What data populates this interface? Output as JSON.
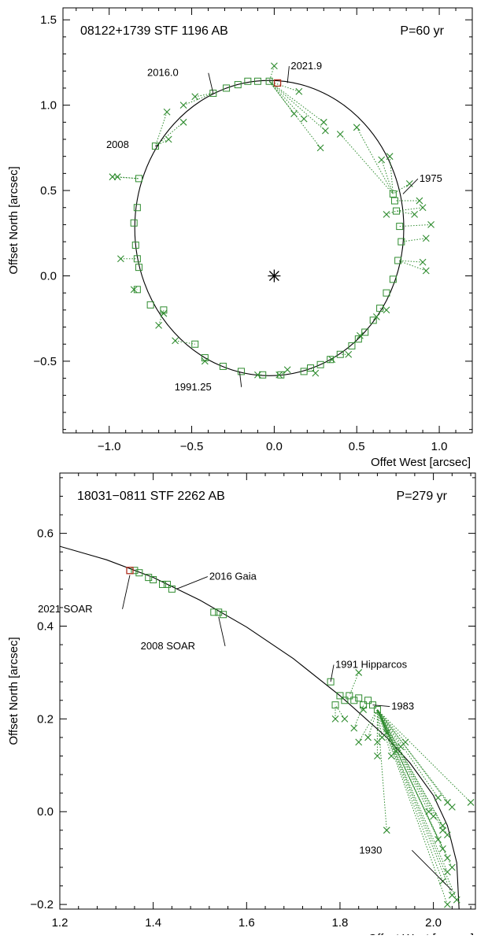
{
  "colors": {
    "measure": "#2e8b2e",
    "model": "#2e8b2e",
    "latest": "#b03020",
    "orbit": "#000000",
    "axis": "#000000"
  },
  "chart_data": [
    {
      "type": "scatter",
      "title": "08122+1739  STF 1196 AB",
      "period": "P=60 yr",
      "xlabel": "Offet West [arcsec]",
      "ylabel": "Offset North [arcsec]",
      "xlim": [
        -1.28,
        1.2
      ],
      "ylim": [
        -0.92,
        1.57
      ],
      "xticks": [
        -1.0,
        -0.5,
        0.0,
        0.5,
        1.0
      ],
      "xtick_labels": [
        "−1.0",
        "−0.5",
        "0.0",
        "0.5",
        "1.0"
      ],
      "yticks": [
        -0.5,
        0.0,
        0.5,
        1.0,
        1.5
      ],
      "ytick_labels": [
        "−0.5",
        "0.0",
        "0.5",
        "1.0",
        "1.5"
      ],
      "grid": false,
      "primary_star": [
        0,
        0
      ],
      "orbit": {
        "cx": -0.03,
        "cy": 0.28,
        "rx": 0.815,
        "ry": 0.865
      },
      "annotations": [
        {
          "text": "2016.0",
          "x": -0.37,
          "y": 1.07,
          "tx": -0.58,
          "ty": 1.17
        },
        {
          "text": "2021.9",
          "x": 0.08,
          "y": 1.13,
          "tx": 0.1,
          "ty": 1.21
        },
        {
          "text": "2008",
          "x": -0.72,
          "y": 0.76,
          "tx": -0.88,
          "ty": 0.75
        },
        {
          "text": "1975",
          "x": 0.78,
          "y": 0.48,
          "tx": 0.88,
          "ty": 0.55
        },
        {
          "text": "1991.25",
          "x": -0.21,
          "y": -0.56,
          "tx": -0.38,
          "ty": -0.67
        }
      ],
      "highlight": [
        0.02,
        1.13
      ],
      "series": [
        {
          "name": "",
          "fits": [
            [
              -0.37,
              1.07
            ],
            [
              -0.29,
              1.1
            ],
            [
              -0.22,
              1.12
            ],
            [
              -0.16,
              1.14
            ],
            [
              -0.1,
              1.14
            ],
            [
              -0.03,
              1.14
            ],
            [
              -0.72,
              0.76
            ],
            [
              -0.82,
              0.57
            ],
            [
              -0.83,
              0.4
            ],
            [
              -0.85,
              0.31
            ],
            [
              -0.84,
              0.18
            ],
            [
              -0.83,
              0.1
            ],
            [
              -0.82,
              0.05
            ],
            [
              -0.83,
              -0.08
            ],
            [
              -0.75,
              -0.17
            ],
            [
              -0.67,
              -0.2
            ],
            [
              -0.48,
              -0.4
            ],
            [
              -0.42,
              -0.48
            ],
            [
              -0.31,
              -0.53
            ],
            [
              -0.2,
              -0.56
            ],
            [
              -0.07,
              -0.58
            ],
            [
              0.04,
              -0.58
            ],
            [
              0.18,
              -0.56
            ],
            [
              0.22,
              -0.54
            ],
            [
              0.28,
              -0.52
            ],
            [
              0.34,
              -0.49
            ],
            [
              0.4,
              -0.46
            ],
            [
              0.47,
              -0.41
            ],
            [
              0.51,
              -0.37
            ],
            [
              0.55,
              -0.33
            ],
            [
              0.6,
              -0.26
            ],
            [
              0.64,
              -0.19
            ],
            [
              0.68,
              -0.1
            ],
            [
              0.72,
              -0.02
            ],
            [
              0.75,
              0.09
            ],
            [
              0.77,
              0.2
            ],
            [
              0.76,
              0.29
            ],
            [
              0.74,
              0.38
            ],
            [
              0.73,
              0.44
            ],
            [
              0.72,
              0.48
            ]
          ],
          "obs": [
            [
              0.0,
              1.23
            ],
            [
              0.15,
              1.08
            ],
            [
              0.12,
              0.95
            ],
            [
              0.18,
              0.92
            ],
            [
              0.3,
              0.9
            ],
            [
              0.31,
              0.85
            ],
            [
              0.28,
              0.75
            ],
            [
              0.4,
              0.83
            ],
            [
              0.5,
              0.87
            ],
            [
              0.65,
              0.68
            ],
            [
              0.7,
              0.7
            ],
            [
              0.82,
              0.54
            ],
            [
              0.88,
              0.44
            ],
            [
              0.9,
              0.4
            ],
            [
              0.85,
              0.36
            ],
            [
              0.95,
              0.3
            ],
            [
              0.92,
              0.22
            ],
            [
              0.9,
              0.08
            ],
            [
              0.92,
              0.03
            ],
            [
              0.68,
              0.36
            ],
            [
              -0.55,
              1.0
            ],
            [
              -0.48,
              1.05
            ],
            [
              -0.65,
              0.96
            ],
            [
              -0.64,
              0.8
            ],
            [
              -0.55,
              0.9
            ],
            [
              -0.98,
              0.58
            ],
            [
              -0.95,
              0.58
            ],
            [
              -0.93,
              0.1
            ],
            [
              -0.85,
              -0.08
            ],
            [
              -0.67,
              -0.22
            ],
            [
              -0.7,
              -0.29
            ],
            [
              -0.6,
              -0.38
            ],
            [
              -0.42,
              -0.5
            ],
            [
              -0.1,
              -0.58
            ],
            [
              0.03,
              -0.58
            ],
            [
              0.08,
              -0.55
            ],
            [
              0.25,
              -0.57
            ],
            [
              0.35,
              -0.49
            ],
            [
              0.45,
              -0.46
            ],
            [
              0.52,
              -0.35
            ],
            [
              0.62,
              -0.24
            ],
            [
              0.68,
              -0.2
            ]
          ]
        }
      ]
    },
    {
      "type": "scatter",
      "title": "18031−0811  STF 2262 AB",
      "period": "P=279 yr",
      "xlabel": "Offset West [arcsec]",
      "ylabel": "Offset North [arcsec]",
      "xlim": [
        1.2,
        2.09
      ],
      "ylim": [
        -0.21,
        0.73
      ],
      "xticks": [
        1.2,
        1.4,
        1.6,
        1.8,
        2.0
      ],
      "xtick_labels": [
        "1.2",
        "1.4",
        "1.6",
        "1.8",
        "2.0"
      ],
      "yticks": [
        -0.2,
        0.0,
        0.2,
        0.4,
        0.6
      ],
      "ytick_labels": [
        "−0.2",
        "0.0",
        "0.2",
        "0.4",
        "0.6"
      ],
      "grid": false,
      "orbit_curve": [
        [
          1.2,
          0.572
        ],
        [
          1.3,
          0.543
        ],
        [
          1.4,
          0.505
        ],
        [
          1.5,
          0.456
        ],
        [
          1.6,
          0.398
        ],
        [
          1.7,
          0.33
        ],
        [
          1.8,
          0.25
        ],
        [
          1.9,
          0.16
        ],
        [
          1.95,
          0.105
        ],
        [
          2.0,
          0.035
        ],
        [
          2.03,
          -0.03
        ],
        [
          2.05,
          -0.11
        ],
        [
          2.055,
          -0.21
        ]
      ],
      "annotations": [
        {
          "text": "2016 Gaia",
          "x": 1.45,
          "y": 0.48,
          "tx": 1.52,
          "ty": 0.5
        },
        {
          "text": "2021 SOAR",
          "x": 1.35,
          "y": 0.51,
          "tx": 1.27,
          "ty": 0.43
        },
        {
          "text": "2008 SOAR",
          "x": 1.54,
          "y": 0.42,
          "tx": 1.49,
          "ty": 0.35
        },
        {
          "text": "1991 Hipparcos",
          "x": 1.78,
          "y": 0.28,
          "tx": 1.79,
          "ty": 0.31
        },
        {
          "text": "1983",
          "x": 1.87,
          "y": 0.23,
          "tx": 1.91,
          "ty": 0.22
        },
        {
          "text": "1930",
          "x": 2.04,
          "y": -0.17,
          "tx": 1.89,
          "ty": -0.09
        }
      ],
      "highlight": [
        1.35,
        0.52
      ],
      "series": [
        {
          "name": "",
          "fits": [
            [
              1.36,
              0.52
            ],
            [
              1.37,
              0.515
            ],
            [
              1.39,
              0.505
            ],
            [
              1.4,
              0.5
            ],
            [
              1.42,
              0.49
            ],
            [
              1.43,
              0.49
            ],
            [
              1.44,
              0.48
            ],
            [
              1.53,
              0.43
            ],
            [
              1.54,
              0.43
            ],
            [
              1.55,
              0.425
            ],
            [
              1.78,
              0.28
            ],
            [
              1.79,
              0.23
            ],
            [
              1.8,
              0.25
            ],
            [
              1.81,
              0.24
            ],
            [
              1.82,
              0.25
            ],
            [
              1.83,
              0.24
            ],
            [
              1.84,
              0.245
            ],
            [
              1.85,
              0.23
            ],
            [
              1.86,
              0.24
            ],
            [
              1.87,
              0.23
            ],
            [
              1.88,
              0.22
            ]
          ],
          "obs": [
            [
              1.84,
              0.3
            ],
            [
              1.79,
              0.2
            ],
            [
              1.81,
              0.2
            ],
            [
              1.83,
              0.18
            ],
            [
              1.84,
              0.15
            ],
            [
              1.86,
              0.16
            ],
            [
              1.88,
              0.15
            ],
            [
              1.89,
              0.16
            ],
            [
              1.9,
              0.17
            ],
            [
              1.91,
              0.12
            ],
            [
              1.92,
              0.13
            ],
            [
              1.93,
              0.14
            ],
            [
              1.94,
              0.15
            ],
            [
              1.88,
              0.12
            ],
            [
              1.85,
              0.22
            ],
            [
              1.9,
              -0.04
            ],
            [
              2.08,
              0.02
            ],
            [
              2.01,
              0.03
            ],
            [
              2.03,
              0.02
            ],
            [
              2.04,
              0.01
            ],
            [
              2.0,
              -0.01
            ],
            [
              2.02,
              -0.03
            ],
            [
              2.03,
              -0.05
            ],
            [
              2.01,
              -0.06
            ],
            [
              2.02,
              -0.08
            ],
            [
              2.03,
              -0.1
            ],
            [
              2.04,
              -0.12
            ],
            [
              2.02,
              -0.15
            ],
            [
              2.03,
              -0.13
            ],
            [
              2.04,
              -0.18
            ],
            [
              2.03,
              -0.2
            ],
            [
              2.05,
              -0.19
            ],
            [
              2.02,
              -0.04
            ],
            [
              1.99,
              0.0
            ]
          ]
        }
      ]
    }
  ]
}
